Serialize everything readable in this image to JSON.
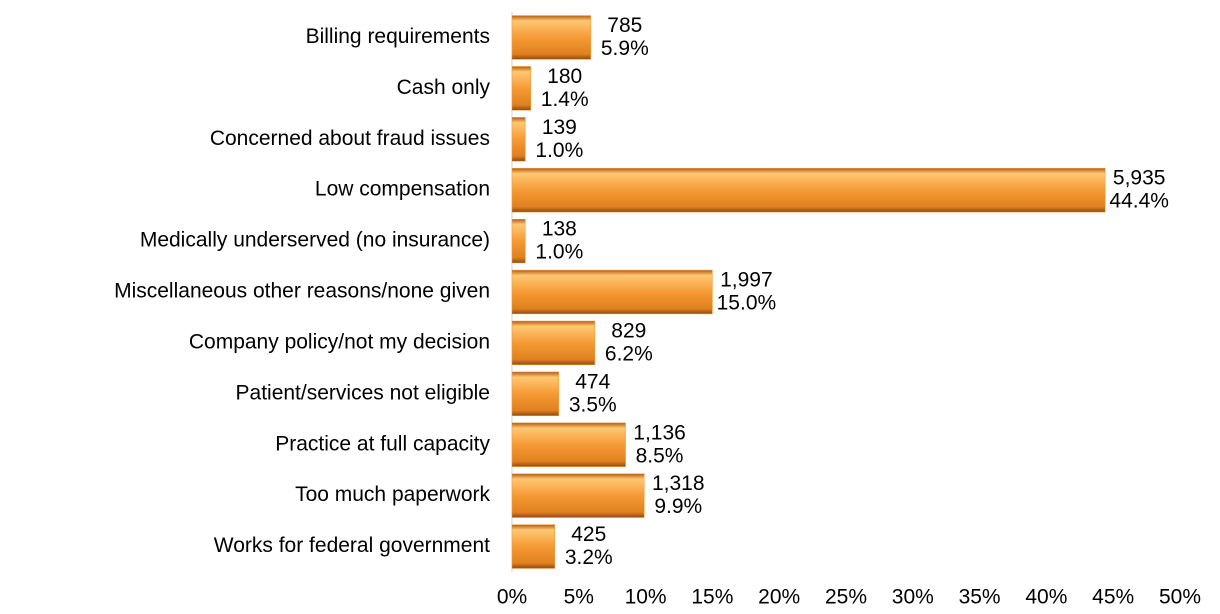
{
  "chart_data": {
    "type": "bar",
    "orientation": "horizontal",
    "categories": [
      "Billing requirements",
      "Cash only",
      "Concerned about fraud issues",
      "Low compensation",
      "Medically underserved (no insurance)",
      "Miscellaneous other reasons/none given",
      "Company policy/not my decision",
      "Patient/services not eligible",
      "Practice at full capacity",
      "Too much paperwork",
      "Works for federal government"
    ],
    "values": [
      5.9,
      1.4,
      1.0,
      44.4,
      1.0,
      15.0,
      6.2,
      3.5,
      8.5,
      9.9,
      3.2
    ],
    "value_labels": [
      "5.9%",
      "1.4%",
      "1.0%",
      "44.4%",
      "1.0%",
      "15.0%",
      "6.2%",
      "3.5%",
      "8.5%",
      "9.9%",
      "3.2%"
    ],
    "counts": [
      "785",
      "180",
      "139",
      "5,935",
      "138",
      "1,997",
      "829",
      "474",
      "1,136",
      "1,318",
      "425"
    ],
    "color": "#f59a35",
    "xlim": [
      0,
      50
    ],
    "xticks": [
      {
        "value": 0,
        "label": "0%"
      },
      {
        "value": 5,
        "label": "5%"
      },
      {
        "value": 10,
        "label": "10%"
      },
      {
        "value": 15,
        "label": "15%"
      },
      {
        "value": 20,
        "label": "20%"
      },
      {
        "value": 25,
        "label": "25%"
      },
      {
        "value": 30,
        "label": "30%"
      },
      {
        "value": 35,
        "label": "35%"
      },
      {
        "value": 40,
        "label": "40%"
      },
      {
        "value": 45,
        "label": "45%"
      },
      {
        "value": 50,
        "label": "50%"
      }
    ],
    "grid": false
  }
}
